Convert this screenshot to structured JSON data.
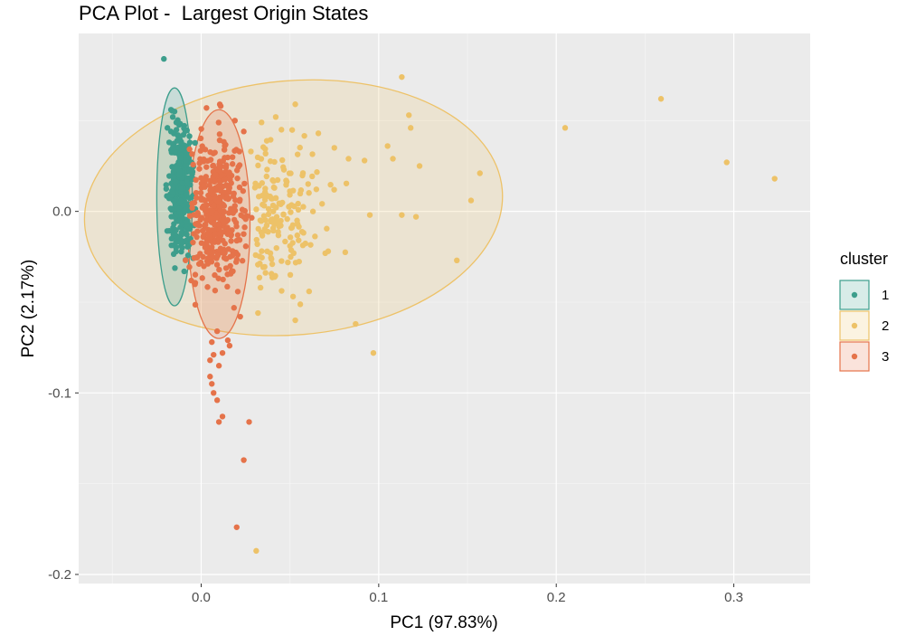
{
  "chart_data": {
    "type": "scatter",
    "title": "PCA Plot -  Largest Origin States",
    "xlabel": "PC1 (97.83%)",
    "ylabel": "PC2 (2.17%)",
    "xlim": [
      -0.069,
      0.343
    ],
    "ylim": [
      -0.205,
      0.098
    ],
    "x_ticks": [
      0.0,
      0.1,
      0.2,
      0.3
    ],
    "x_tick_labels": [
      "0.0",
      "0.1",
      "0.2",
      "0.3"
    ],
    "y_ticks": [
      0.0,
      -0.1,
      -0.2
    ],
    "y_tick_labels": [
      "0.0",
      "-0.1",
      "-0.2"
    ],
    "grid": true,
    "legend": {
      "title": "cluster",
      "position": "right"
    },
    "colors": {
      "1": "#3D9E8C",
      "2": "#EDC268",
      "3": "#E5734A"
    },
    "series": [
      {
        "name": "1",
        "color": "#3D9E8C",
        "ellipse": {
          "cx": -0.015,
          "cy": 0.008,
          "rx": 0.01,
          "ry": 0.06
        },
        "dense_region": {
          "x": [
            -0.018,
            -0.005
          ],
          "y": [
            -0.025,
            0.045
          ],
          "count": 320
        },
        "points": [
          [
            -0.021,
            0.084
          ],
          [
            -0.017,
            0.056
          ],
          [
            -0.015,
            0.055
          ],
          [
            -0.016,
            0.052
          ],
          [
            -0.019,
            0.046
          ],
          [
            -0.014,
            0.049
          ],
          [
            -0.017,
            0.044
          ],
          [
            -0.013,
            0.042
          ],
          [
            -0.012,
            0.048
          ],
          [
            -0.018,
            0.038
          ],
          [
            -0.016,
            0.035
          ]
        ]
      },
      {
        "name": "2",
        "color": "#EDC268",
        "ellipse": {
          "cx": 0.052,
          "cy": 0.002,
          "rx": 0.118,
          "ry": 0.07,
          "angle": 5
        },
        "dense_region": {
          "x": [
            0.03,
            0.09
          ],
          "y": [
            -0.045,
            0.04
          ],
          "count": 170
        },
        "points": [
          [
            0.028,
            0.033
          ],
          [
            0.034,
            0.049
          ],
          [
            0.042,
            0.052
          ],
          [
            0.053,
            0.059
          ],
          [
            0.066,
            0.043
          ],
          [
            0.075,
            0.035
          ],
          [
            0.083,
            0.029
          ],
          [
            0.092,
            0.028
          ],
          [
            0.105,
            0.036
          ],
          [
            0.113,
            0.074
          ],
          [
            0.117,
            0.053
          ],
          [
            0.118,
            0.046
          ],
          [
            0.123,
            0.025
          ],
          [
            0.108,
            0.029
          ],
          [
            0.121,
            -0.003
          ],
          [
            0.113,
            -0.002
          ],
          [
            0.095,
            -0.002
          ],
          [
            0.097,
            -0.078
          ],
          [
            0.087,
            -0.062
          ],
          [
            0.053,
            -0.06
          ],
          [
            0.032,
            -0.056
          ],
          [
            0.144,
            -0.027
          ],
          [
            0.152,
            0.006
          ],
          [
            0.157,
            0.021
          ],
          [
            0.205,
            0.046
          ],
          [
            0.259,
            0.062
          ],
          [
            0.296,
            0.027
          ],
          [
            0.323,
            0.018
          ],
          [
            0.031,
            -0.187
          ]
        ]
      },
      {
        "name": "3",
        "color": "#E5734A",
        "ellipse": {
          "cx": 0.01,
          "cy": -0.007,
          "rx": 0.0175,
          "ry": 0.063
        },
        "dense_region": {
          "x": [
            -0.005,
            0.024
          ],
          "y": [
            -0.04,
            0.04
          ],
          "count": 380
        },
        "points": [
          [
            0.003,
            0.057
          ],
          [
            0.011,
            0.058
          ],
          [
            0.019,
            0.05
          ],
          [
            0.024,
            0.044
          ],
          [
            0.022,
            -0.058
          ],
          [
            0.009,
            -0.066
          ],
          [
            0.015,
            -0.071
          ],
          [
            0.006,
            -0.072
          ],
          [
            0.012,
            -0.078
          ],
          [
            0.007,
            -0.079
          ],
          [
            0.016,
            -0.074
          ],
          [
            0.005,
            -0.082
          ],
          [
            0.01,
            -0.085
          ],
          [
            0.005,
            -0.091
          ],
          [
            0.006,
            -0.095
          ],
          [
            0.007,
            -0.1
          ],
          [
            0.009,
            -0.104
          ],
          [
            0.012,
            -0.113
          ],
          [
            0.01,
            -0.116
          ],
          [
            0.027,
            -0.116
          ],
          [
            0.024,
            -0.137
          ],
          [
            0.02,
            -0.174
          ]
        ]
      }
    ]
  }
}
